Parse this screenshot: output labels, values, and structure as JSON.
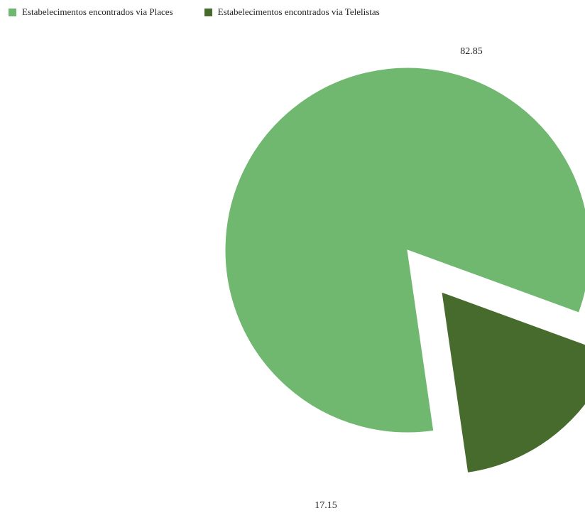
{
  "chart_data": {
    "type": "pie",
    "legend_position": "top-left",
    "series": [
      {
        "name": "Estabelecimentos encontrados via Places",
        "value": 82.85,
        "label": "82.85",
        "color": "#70b870"
      },
      {
        "name": "Estabelecimentos encontrados via Telelistas",
        "value": 17.15,
        "label": "17.15",
        "color": "#476b2d"
      }
    ]
  }
}
